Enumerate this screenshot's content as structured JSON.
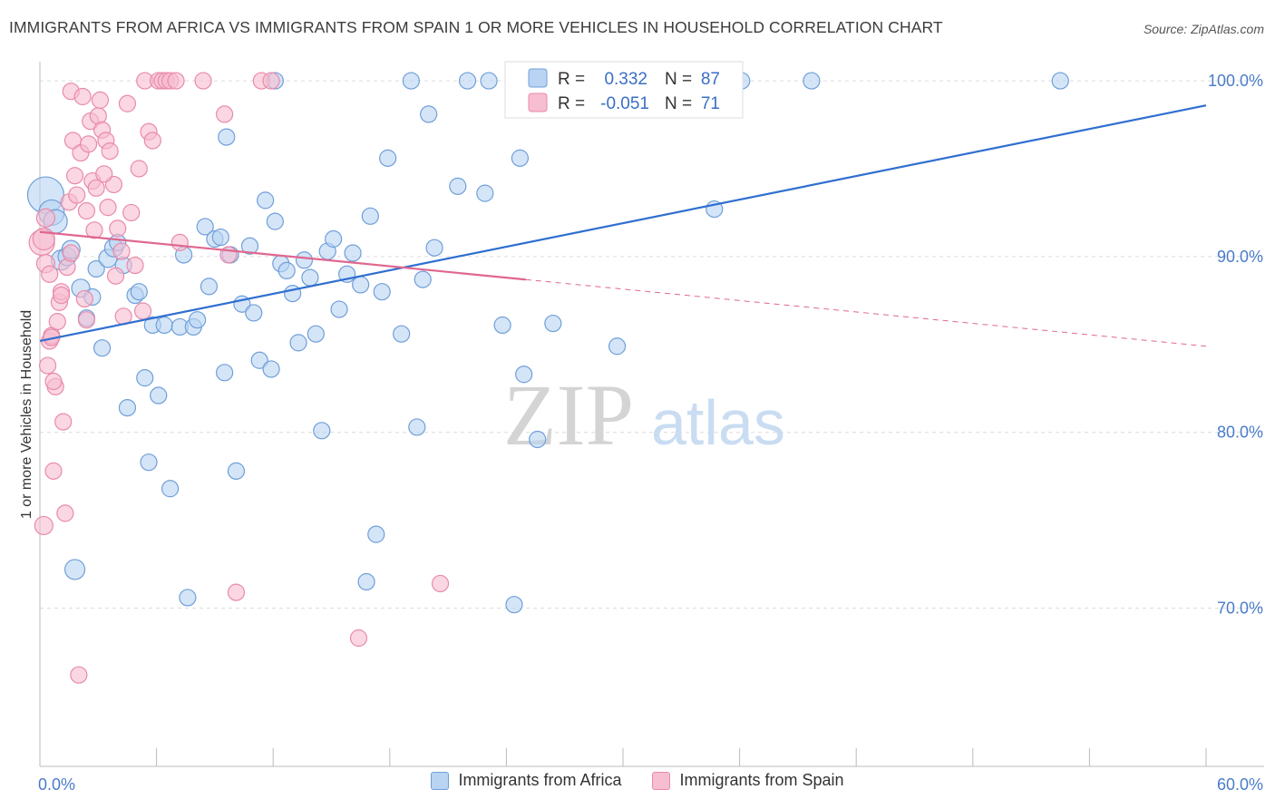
{
  "title": "IMMIGRANTS FROM AFRICA VS IMMIGRANTS FROM SPAIN 1 OR MORE VEHICLES IN HOUSEHOLD CORRELATION CHART",
  "source": "Source: ZipAtlas.com",
  "watermark": {
    "zip": "ZIP",
    "atlas": "atlas"
  },
  "colors": {
    "africa_fill": "#b9d3f3",
    "africa_stroke": "#6f9fd8",
    "africa_line": "#2f6fd0",
    "spain_fill": "#f7bdd0",
    "spain_stroke": "#e98aaa",
    "spain_line": "#e0678f",
    "axis_tick_text": "#4a7cc9",
    "grid": "#dcdcdc"
  },
  "legend_stats": [
    {
      "r_label": "R =",
      "r_value": "0.332",
      "n_label": "N =",
      "n_value": "87"
    },
    {
      "r_label": "R =",
      "r_value": "-0.051",
      "n_label": "N =",
      "n_value": "71"
    }
  ],
  "chart_data": {
    "type": "scatter",
    "xlabel": "",
    "ylabel": "1 or more Vehicles in Household",
    "xlim": [
      0,
      60
    ],
    "ylim": [
      61,
      101.5
    ],
    "y_ticks": [
      70,
      80,
      90,
      100
    ],
    "y_tick_labels": [
      "70.0%",
      "80.0%",
      "90.0%",
      "100.0%"
    ],
    "x_tick_labels": [
      "0.0%",
      "60.0%"
    ],
    "grid": true,
    "legend_position": "bottom",
    "series": [
      {
        "name": "Immigrants from Africa",
        "r": 0.332,
        "n": 87,
        "trend": {
          "x": [
            0.0,
            60.0
          ],
          "y": [
            85.2,
            98.6
          ],
          "dashed_from_x": null
        },
        "points": [
          [
            0.3,
            93.5,
            2.0
          ],
          [
            0.6,
            92.5,
            1.4
          ],
          [
            0.8,
            92.0,
            1.3
          ],
          [
            1.1,
            89.8,
            1.1
          ],
          [
            1.4,
            90.0,
            1.0
          ],
          [
            1.6,
            90.4,
            1.0
          ],
          [
            2.1,
            88.2,
            1.0
          ],
          [
            2.4,
            86.5,
            0.9
          ],
          [
            2.7,
            87.7,
            0.9
          ],
          [
            2.9,
            89.3,
            0.9
          ],
          [
            3.2,
            84.8,
            0.9
          ],
          [
            3.5,
            89.9,
            1.0
          ],
          [
            3.8,
            90.5,
            1.0
          ],
          [
            4.0,
            90.8,
            0.9
          ],
          [
            4.3,
            89.5,
            0.9
          ],
          [
            4.5,
            81.4,
            0.9
          ],
          [
            4.9,
            87.8,
            0.9
          ],
          [
            5.1,
            88.0,
            0.9
          ],
          [
            5.4,
            83.1,
            0.9
          ],
          [
            5.6,
            78.3,
            0.9
          ],
          [
            5.8,
            86.1,
            0.9
          ],
          [
            6.1,
            82.1,
            0.9
          ],
          [
            6.4,
            86.1,
            0.9
          ],
          [
            6.7,
            76.8,
            0.9
          ],
          [
            7.2,
            86.0,
            0.9
          ],
          [
            7.4,
            90.1,
            0.9
          ],
          [
            7.6,
            70.6,
            0.9
          ],
          [
            7.9,
            86.0,
            0.9
          ],
          [
            8.1,
            86.4,
            0.9
          ],
          [
            8.5,
            91.7,
            0.9
          ],
          [
            8.7,
            88.3,
            0.9
          ],
          [
            9.0,
            91.0,
            0.9
          ],
          [
            9.3,
            91.1,
            0.9
          ],
          [
            9.5,
            83.4,
            0.9
          ],
          [
            9.8,
            90.1,
            0.9
          ],
          [
            10.1,
            77.8,
            0.9
          ],
          [
            10.4,
            87.3,
            0.9
          ],
          [
            10.8,
            90.6,
            0.9
          ],
          [
            11.0,
            86.8,
            0.9
          ],
          [
            11.3,
            84.1,
            0.9
          ],
          [
            11.6,
            93.2,
            0.9
          ],
          [
            11.9,
            83.6,
            0.9
          ],
          [
            12.1,
            92.0,
            0.9
          ],
          [
            12.4,
            89.6,
            0.9
          ],
          [
            12.7,
            89.2,
            0.9
          ],
          [
            13.0,
            87.9,
            0.9
          ],
          [
            13.3,
            85.1,
            0.9
          ],
          [
            13.6,
            89.8,
            0.9
          ],
          [
            13.9,
            88.8,
            0.9
          ],
          [
            14.2,
            85.6,
            0.9
          ],
          [
            14.5,
            80.1,
            0.9
          ],
          [
            14.8,
            90.3,
            0.9
          ],
          [
            15.1,
            91.0,
            0.9
          ],
          [
            15.4,
            87.0,
            0.9
          ],
          [
            15.8,
            89.0,
            0.9
          ],
          [
            16.1,
            90.2,
            0.9
          ],
          [
            16.5,
            88.4,
            0.9
          ],
          [
            16.8,
            71.5,
            0.9
          ],
          [
            17.0,
            92.3,
            0.9
          ],
          [
            17.3,
            74.2,
            0.9
          ],
          [
            17.6,
            88.0,
            0.9
          ],
          [
            17.9,
            95.6,
            0.9
          ],
          [
            18.6,
            85.6,
            0.9
          ],
          [
            19.4,
            80.3,
            0.9
          ],
          [
            19.7,
            88.7,
            0.9
          ],
          [
            12.1,
            100.0,
            0.9
          ],
          [
            19.1,
            100.0,
            0.9
          ],
          [
            20.0,
            98.1,
            0.9
          ],
          [
            20.3,
            90.5,
            0.9
          ],
          [
            21.5,
            94.0,
            0.9
          ],
          [
            22.0,
            100.0,
            0.9
          ],
          [
            22.9,
            93.6,
            0.9
          ],
          [
            23.1,
            100.0,
            0.9
          ],
          [
            23.8,
            86.1,
            0.9
          ],
          [
            24.4,
            70.2,
            0.9
          ],
          [
            24.7,
            95.6,
            0.9
          ],
          [
            24.9,
            83.3,
            0.9
          ],
          [
            25.6,
            79.6,
            0.9
          ],
          [
            26.4,
            86.2,
            0.9
          ],
          [
            26.8,
            100.0,
            0.9
          ],
          [
            29.7,
            84.9,
            0.9
          ],
          [
            34.7,
            92.7,
            0.9
          ],
          [
            36.1,
            100.0,
            0.9
          ],
          [
            39.7,
            100.0,
            0.9
          ],
          [
            52.5,
            100.0,
            0.9
          ],
          [
            9.6,
            96.8,
            0.9
          ],
          [
            1.8,
            72.2,
            1.1
          ]
        ]
      },
      {
        "name": "Immigrants from Spain",
        "r": -0.051,
        "n": 71,
        "trend": {
          "x": [
            0.0,
            60.0
          ],
          "y": [
            91.4,
            84.9
          ],
          "dashed_from_x": 25.0
        },
        "points": [
          [
            0.1,
            90.8,
            1.4
          ],
          [
            0.2,
            74.7,
            1.0
          ],
          [
            0.3,
            89.6,
            1.0
          ],
          [
            0.4,
            83.8,
            0.9
          ],
          [
            0.5,
            85.2,
            0.9
          ],
          [
            0.6,
            85.5,
            0.9
          ],
          [
            0.7,
            77.8,
            0.9
          ],
          [
            0.8,
            82.6,
            0.9
          ],
          [
            0.9,
            86.3,
            0.9
          ],
          [
            1.0,
            87.4,
            0.9
          ],
          [
            1.1,
            88.0,
            0.9
          ],
          [
            1.2,
            80.6,
            0.9
          ],
          [
            1.3,
            75.4,
            0.9
          ],
          [
            1.4,
            89.4,
            0.9
          ],
          [
            1.5,
            93.1,
            0.9
          ],
          [
            1.6,
            99.4,
            0.9
          ],
          [
            1.7,
            96.6,
            0.9
          ],
          [
            1.8,
            94.6,
            0.9
          ],
          [
            1.9,
            93.5,
            0.9
          ],
          [
            2.0,
            66.2,
            0.9
          ],
          [
            2.1,
            95.9,
            0.9
          ],
          [
            2.2,
            99.1,
            0.9
          ],
          [
            2.3,
            87.6,
            0.9
          ],
          [
            2.4,
            92.6,
            0.9
          ],
          [
            2.5,
            96.4,
            0.9
          ],
          [
            2.6,
            97.7,
            0.9
          ],
          [
            2.7,
            94.3,
            0.9
          ],
          [
            2.8,
            91.5,
            0.9
          ],
          [
            2.9,
            93.9,
            0.9
          ],
          [
            3.0,
            98.0,
            0.9
          ],
          [
            3.1,
            98.9,
            0.9
          ],
          [
            3.2,
            97.2,
            0.9
          ],
          [
            3.4,
            96.6,
            0.9
          ],
          [
            3.5,
            92.8,
            0.9
          ],
          [
            3.6,
            96.0,
            0.9
          ],
          [
            3.8,
            94.1,
            0.9
          ],
          [
            3.9,
            88.9,
            0.9
          ],
          [
            4.0,
            91.6,
            0.9
          ],
          [
            4.2,
            90.3,
            0.9
          ],
          [
            4.3,
            86.6,
            0.9
          ],
          [
            4.5,
            98.7,
            0.9
          ],
          [
            4.7,
            92.5,
            0.9
          ],
          [
            4.9,
            89.5,
            0.9
          ],
          [
            5.1,
            95.0,
            0.9
          ],
          [
            5.3,
            86.9,
            0.9
          ],
          [
            5.4,
            100.0,
            0.9
          ],
          [
            5.6,
            97.1,
            0.9
          ],
          [
            5.8,
            96.6,
            0.9
          ],
          [
            6.1,
            100.0,
            0.9
          ],
          [
            6.3,
            100.0,
            0.9
          ],
          [
            6.5,
            100.0,
            0.9
          ],
          [
            6.7,
            100.0,
            0.9
          ],
          [
            7.0,
            100.0,
            0.9
          ],
          [
            7.2,
            90.8,
            0.9
          ],
          [
            8.4,
            100.0,
            0.9
          ],
          [
            9.5,
            98.1,
            0.9
          ],
          [
            9.7,
            90.1,
            0.9
          ],
          [
            10.1,
            70.9,
            0.9
          ],
          [
            11.4,
            100.0,
            0.9
          ],
          [
            11.9,
            100.0,
            0.9
          ],
          [
            16.4,
            68.3,
            0.9
          ],
          [
            20.6,
            71.4,
            0.9
          ],
          [
            0.2,
            91.0,
            1.2
          ],
          [
            0.3,
            92.2,
            1.0
          ],
          [
            0.5,
            89.0,
            0.9
          ],
          [
            0.6,
            85.4,
            0.9
          ],
          [
            0.7,
            82.9,
            0.9
          ],
          [
            1.1,
            87.8,
            0.9
          ],
          [
            1.6,
            90.2,
            0.9
          ],
          [
            2.4,
            86.4,
            0.9
          ],
          [
            3.3,
            94.7,
            0.9
          ]
        ]
      }
    ]
  }
}
